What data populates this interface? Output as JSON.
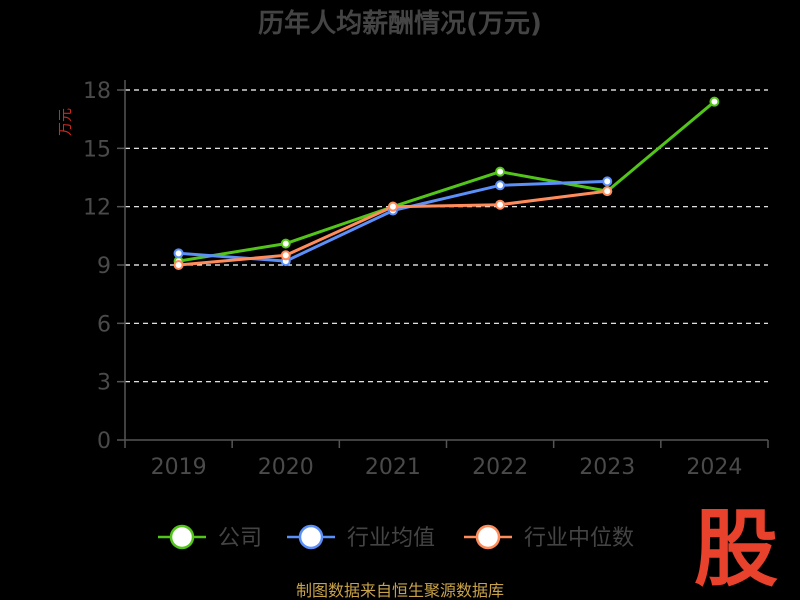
{
  "chart_data": {
    "type": "line",
    "title": "历年人均薪酬情况(万元)",
    "ylabel": "万元",
    "categories": [
      "2019",
      "2020",
      "2021",
      "2022",
      "2023",
      "2024"
    ],
    "yticks": [
      "0",
      "3",
      "6",
      "9",
      "12",
      "15",
      "18"
    ],
    "ylim": [
      0,
      18
    ],
    "grid": true,
    "legend_position": "bottom",
    "series": [
      {
        "name": "公司",
        "color": "#52c41a",
        "values": [
          9.2,
          10.1,
          12.0,
          13.8,
          12.8,
          17.4
        ]
      },
      {
        "name": "行业均值",
        "color": "#5b8ff9",
        "values": [
          9.6,
          9.2,
          11.8,
          13.1,
          13.3,
          null
        ]
      },
      {
        "name": "行业中位数",
        "color": "#ff8c5a",
        "values": [
          9.0,
          9.5,
          12.0,
          12.1,
          12.8,
          null
        ]
      }
    ]
  },
  "footer": {
    "source": "制图数据来自恒生聚源数据库"
  },
  "logo": {
    "text": "股"
  }
}
